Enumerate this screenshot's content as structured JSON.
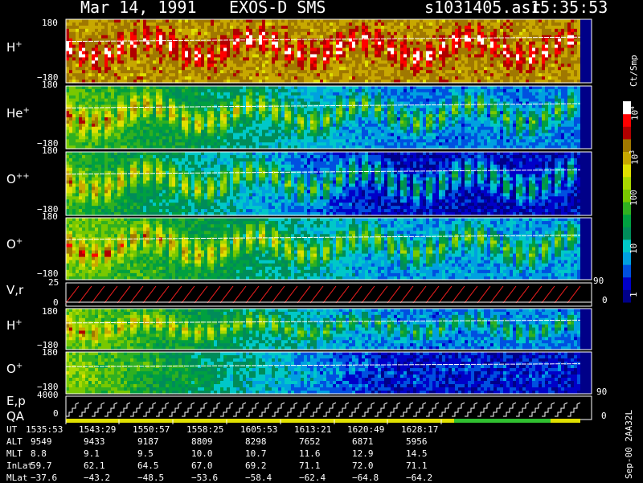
{
  "header": {
    "date": "Mar 14, 1991",
    "instrument": "EXOS-D SMS",
    "file": "s1031405.asr",
    "time": "15:35:53"
  },
  "panels": [
    {
      "id": "h-plus",
      "label": "H",
      "sup": "+",
      "top_tick": "180",
      "bottom_tick": "−180"
    },
    {
      "id": "he-plus",
      "label": "He",
      "sup": "+",
      "top_tick": "180",
      "bottom_tick": "−180"
    },
    {
      "id": "o-pp",
      "label": "O",
      "sup": "++",
      "top_tick": "180",
      "bottom_tick": "−180"
    },
    {
      "id": "o-plus",
      "label": "O",
      "sup": "+",
      "top_tick": "180",
      "bottom_tick": "−180"
    },
    {
      "id": "vr",
      "label": "V,r",
      "sup": "",
      "top_tick": "25",
      "bottom_tick": "0",
      "right_tick": "90"
    },
    {
      "id": "h-plus-2",
      "label": "H",
      "sup": "+",
      "top_tick": "180",
      "bottom_tick": "−180"
    },
    {
      "id": "o-plus-2",
      "label": "O",
      "sup": "+",
      "top_tick": "180",
      "bottom_tick": "−180",
      "right_tick": "90"
    },
    {
      "id": "ep",
      "label": "E,p",
      "sup": "",
      "top_tick": "4000",
      "bottom_tick": "0",
      "right_tick": "0"
    }
  ],
  "qa_label": "QA",
  "colorbar": {
    "unit": "Ct/Smp",
    "ticks": [
      {
        "text": "10",
        "sup": "4",
        "value": 10000
      },
      {
        "text": "10",
        "sup": "3",
        "value": 1000
      },
      {
        "text": "100",
        "sup": "",
        "value": 100
      },
      {
        "text": "10",
        "sup": "",
        "value": 10
      },
      {
        "text": "1",
        "sup": "",
        "value": 1
      }
    ],
    "bottom_label": "0",
    "colors": [
      "#000088",
      "#0000c8",
      "#0050e0",
      "#00a0e0",
      "#00c8c8",
      "#008c5a",
      "#00a040",
      "#30b020",
      "#78c800",
      "#a8d800",
      "#e0e000",
      "#c8a800",
      "#a07800",
      "#b00000",
      "#ff0000",
      "#ffffff"
    ]
  },
  "stamp": "Sep-00  2AA32L",
  "ephemeris": {
    "row_labels": [
      "UT",
      "ALT",
      "MLT",
      "InLat",
      "MLat"
    ],
    "columns": [
      {
        "UT": "1535:53",
        "ALT": "9549",
        "MLT": "8.8",
        "InLat": "59.7",
        "MLat": "−37.6"
      },
      {
        "UT": "1543:29",
        "ALT": "9433",
        "MLT": "9.1",
        "InLat": "62.1",
        "MLat": "−43.2"
      },
      {
        "UT": "1550:57",
        "ALT": "9187",
        "MLT": "9.5",
        "InLat": "64.5",
        "MLat": "−48.5"
      },
      {
        "UT": "1558:25",
        "ALT": "8809",
        "MLT": "10.0",
        "InLat": "67.0",
        "MLat": "−53.6"
      },
      {
        "UT": "1605:53",
        "ALT": "8298",
        "MLT": "10.7",
        "InLat": "69.2",
        "MLat": "−58.4"
      },
      {
        "UT": "1613:21",
        "ALT": "7652",
        "MLT": "11.6",
        "InLat": "71.1",
        "MLat": "−62.4"
      },
      {
        "UT": "1620:49",
        "ALT": "6871",
        "MLT": "12.9",
        "InLat": "72.0",
        "MLat": "−64.8"
      },
      {
        "UT": "1628:17",
        "ALT": "5956",
        "MLT": "14.5",
        "InLat": "71.1",
        "MLat": "−64.2"
      }
    ]
  },
  "chart_data": {
    "type": "heatmap",
    "x_label": "UT",
    "x_ticks": [
      "1535:53",
      "1543:29",
      "1550:57",
      "1558:25",
      "1605:53",
      "1613:21",
      "1620:49",
      "1628:17"
    ],
    "spin_count": 40,
    "panels": [
      {
        "name": "H+",
        "y_range": [
          -180,
          180
        ],
        "level_start": 11.5,
        "level_end": 11.5,
        "peak": 3.2
      },
      {
        "name": "He+",
        "y_range": [
          -180,
          180
        ],
        "level_start": 7.5,
        "level_end": 2.5,
        "peak": 5.5
      },
      {
        "name": "O++",
        "y_range": [
          -180,
          180
        ],
        "level_start": 7.0,
        "level_end": 0.8,
        "peak": 5.5
      },
      {
        "name": "O+",
        "y_range": [
          -180,
          180
        ],
        "level_start": 8.0,
        "level_end": 3.0,
        "peak": 5.5
      },
      {
        "name": "H+ (2)",
        "y_range": [
          -180,
          180
        ],
        "level_start": 8.0,
        "level_end": 2.5,
        "peak": 4.5
      },
      {
        "name": "O+ (2)",
        "y_range": [
          -180,
          180
        ],
        "level_start": 8.0,
        "level_end": 1.0,
        "peak": 1.0
      }
    ],
    "vr_range": [
      0,
      25
    ],
    "ep_range": [
      0,
      4000
    ]
  }
}
